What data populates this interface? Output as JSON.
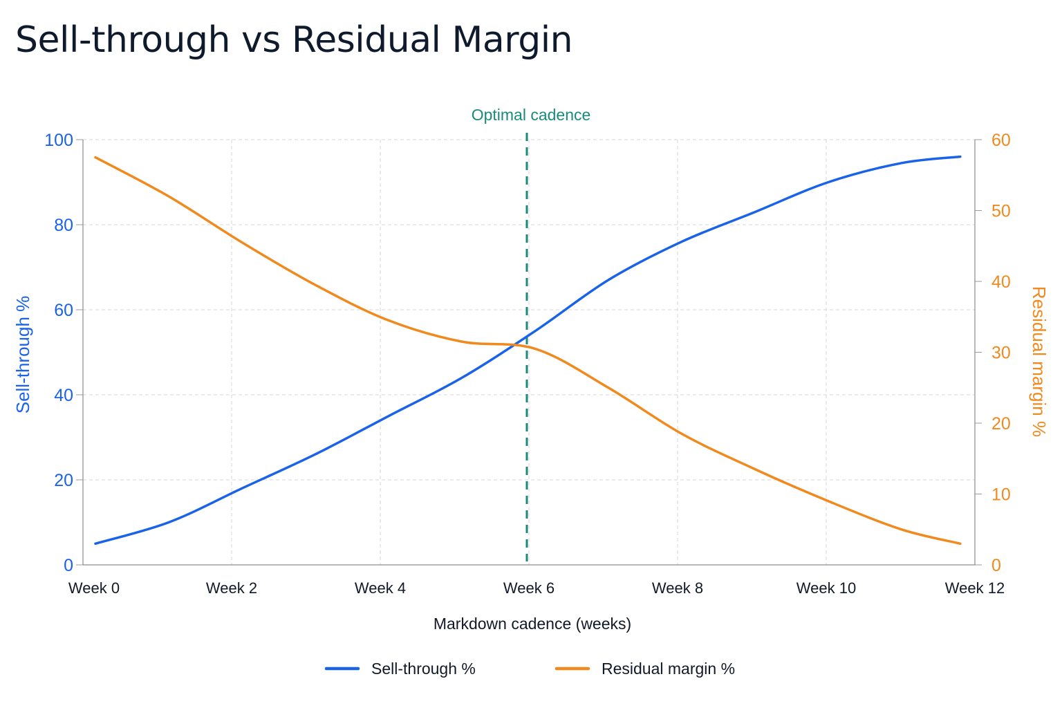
{
  "chart_data": {
    "type": "line",
    "title": "Sell-through vs Residual Margin",
    "xlabel": "Markdown cadence (weeks)",
    "ylabel_left": "Sell-through %",
    "ylabel_right": "Residual margin %",
    "x_ticks": [
      "Week 0",
      "Week 2",
      "Week 4",
      "Week 6",
      "Week 8",
      "Week 10",
      "Week 12"
    ],
    "x_range": [
      0,
      12
    ],
    "y_left_range": [
      0,
      100
    ],
    "y_left_ticks": [
      "0",
      "20",
      "40",
      "60",
      "80",
      "100"
    ],
    "y_right_range": [
      0,
      60
    ],
    "y_right_ticks": [
      "0",
      "10",
      "20",
      "30",
      "40",
      "50",
      "60"
    ],
    "grid": true,
    "legend_position": "bottom-center",
    "series": [
      {
        "name": "Sell-through %",
        "axis": "left",
        "color": "#1a63e8",
        "x": [
          0,
          1,
          2,
          3,
          4,
          5,
          6,
          7,
          8,
          9,
          10,
          11,
          11.8
        ],
        "y": [
          5,
          10,
          18,
          26,
          35,
          44,
          55,
          67,
          76,
          83,
          90,
          94.5,
          96
        ]
      },
      {
        "name": "Residual margin %",
        "axis": "right",
        "color": "#f0891e",
        "x": [
          0,
          1,
          2,
          3,
          4,
          5,
          6,
          7,
          8,
          9,
          10,
          11,
          11.8
        ],
        "y": [
          57.5,
          52,
          45.5,
          39.5,
          34.5,
          31.5,
          30.5,
          25,
          18.5,
          13.5,
          9,
          5,
          3
        ]
      }
    ],
    "annotations": [
      {
        "type": "vline",
        "x": 6,
        "label": "Optimal cadence",
        "color": "#1a8a7a"
      }
    ]
  }
}
